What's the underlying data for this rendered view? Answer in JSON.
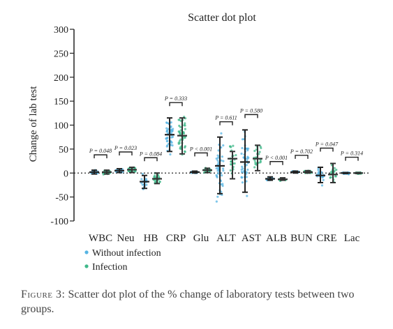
{
  "chart_data": {
    "type": "scatter",
    "title": "Scatter dot plot",
    "ylabel": "Change of lab test",
    "ylim": [
      -100,
      300
    ],
    "yticks": [
      -100,
      -50,
      0,
      50,
      100,
      150,
      200,
      250,
      300
    ],
    "categories": [
      "WBC",
      "Neu",
      "HB",
      "CRP",
      "Glu",
      "ALT",
      "AST",
      "ALB",
      "BUN",
      "CRE",
      "Lac"
    ],
    "p_values": [
      "P = 0.048",
      "P = 0.023",
      "P = 0.084",
      "P = 0.333",
      "P < 0.001",
      "P = 0.611",
      "P = 0.580",
      "P < 0.001",
      "P = 0.702",
      "P = 0.047",
      "P = 0.314"
    ],
    "series": [
      {
        "name": "Without infection",
        "color": "#56b4e3",
        "mean": [
          2,
          5,
          -18,
          80,
          2,
          15,
          23,
          -12,
          2,
          -5,
          0
        ],
        "sd_low": [
          -2,
          1,
          -32,
          45,
          0,
          -43,
          -40,
          -15,
          0,
          -20,
          -1
        ],
        "sd_high": [
          6,
          9,
          -5,
          115,
          4,
          75,
          90,
          -8,
          4,
          12,
          1
        ]
      },
      {
        "name": "Infection",
        "color": "#3fb88a",
        "mean": [
          2,
          7,
          -12,
          78,
          6,
          30,
          30,
          -13,
          2,
          -3,
          0
        ],
        "sd_low": [
          -2,
          1,
          -22,
          40,
          1,
          -12,
          5,
          -15,
          0,
          -20,
          -1
        ],
        "sd_high": [
          6,
          12,
          0,
          115,
          10,
          45,
          58,
          -10,
          5,
          20,
          1
        ]
      }
    ],
    "legend": "bottom-left",
    "grid": false
  },
  "caption": {
    "label": "Figure 3:",
    "text": "Scatter dot plot of the % change of laboratory tests between two groups."
  }
}
